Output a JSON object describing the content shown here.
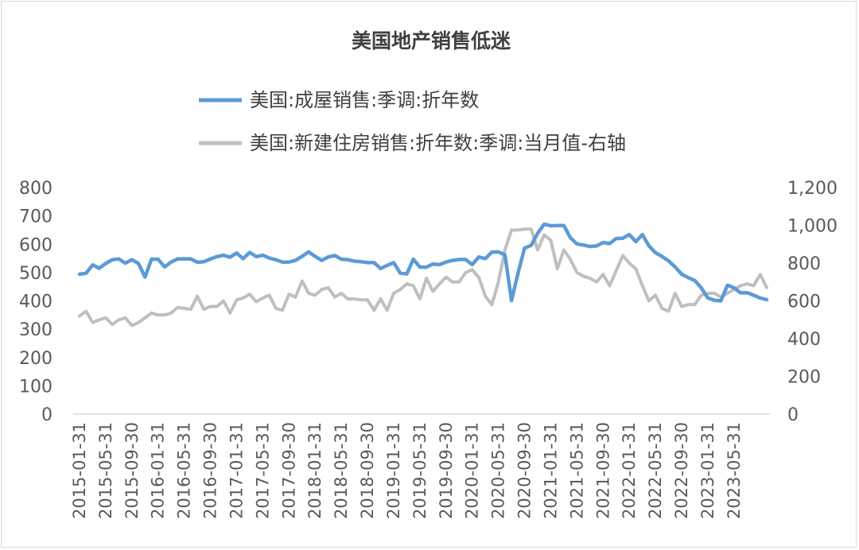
{
  "chart_data": {
    "type": "line",
    "title": "美国地产销售低迷",
    "series": [
      {
        "name": "美国:成屋销售:季调:折年数",
        "axis": "left",
        "color": "#5b9bd5",
        "values": [
          494,
          497,
          527,
          515,
          532,
          545,
          548,
          533,
          545,
          532,
          484,
          547,
          547,
          520,
          537,
          548,
          548,
          548,
          536,
          538,
          548,
          556,
          561,
          554,
          569,
          549,
          571,
          556,
          561,
          551,
          545,
          537,
          537,
          543,
          557,
          573,
          557,
          543,
          555,
          560,
          547,
          545,
          540,
          538,
          535,
          535,
          514,
          525,
          535,
          498,
          495,
          547,
          519,
          519,
          530,
          528,
          537,
          543,
          546,
          546,
          528,
          555,
          549,
          572,
          573,
          562,
          401,
          498,
          586,
          596,
          639,
          671,
          665,
          666,
          666,
          623,
          601,
          597,
          592,
          594,
          606,
          602,
          620,
          621,
          634,
          609,
          634,
          594,
          570,
          557,
          541,
          520,
          494,
          482,
          472,
          446,
          410,
          402,
          400,
          455,
          446,
          428,
          429,
          420,
          410,
          404
        ]
      },
      {
        "name": "美国:新建住房销售:折年数:季调:当月值-右轴",
        "axis": "right",
        "color": "#bfbfbf",
        "values": [
          520,
          545,
          485,
          500,
          510,
          475,
          500,
          510,
          470,
          485,
          510,
          535,
          525,
          525,
          535,
          565,
          560,
          555,
          625,
          555,
          570,
          570,
          600,
          535,
          605,
          615,
          635,
          595,
          615,
          630,
          560,
          550,
          635,
          620,
          705,
          640,
          630,
          660,
          670,
          620,
          640,
          610,
          610,
          605,
          605,
          550,
          610,
          550,
          640,
          660,
          690,
          680,
          610,
          720,
          650,
          690,
          725,
          700,
          700,
          750,
          765,
          725,
          625,
          580,
          700,
          870,
          975,
          975,
          980,
          980,
          870,
          950,
          920,
          770,
          870,
          820,
          750,
          730,
          720,
          700,
          740,
          680,
          760,
          840,
          800,
          770,
          680,
          600,
          630,
          560,
          545,
          640,
          570,
          580,
          580,
          630,
          640,
          640,
          620,
          640,
          660,
          680,
          690,
          680,
          740,
          670
        ]
      }
    ],
    "x_labels": [
      "2015-01-31",
      "2015-05-31",
      "2015-09-30",
      "2016-01-31",
      "2016-05-31",
      "2016-09-30",
      "2017-01-31",
      "2017-05-31",
      "2017-09-30",
      "2018-01-31",
      "2018-05-31",
      "2018-09-30",
      "2019-01-31",
      "2019-05-31",
      "2019-09-30",
      "2020-01-31",
      "2020-05-31",
      "2020-09-30",
      "2021-01-31",
      "2021-05-31",
      "2021-09-30",
      "2022-01-31",
      "2022-05-31",
      "2022-09-30",
      "2023-01-31",
      "2023-05-31"
    ],
    "y_left": {
      "ticks": [
        "0",
        "100",
        "200",
        "300",
        "400",
        "500",
        "600",
        "700",
        "800"
      ],
      "min": 0,
      "max": 800
    },
    "y_right": {
      "ticks": [
        "0",
        "200",
        "400",
        "600",
        "800",
        "1,000",
        "1,200"
      ],
      "min": 0,
      "max": 1200
    },
    "legend_position": "top",
    "grid": false
  }
}
